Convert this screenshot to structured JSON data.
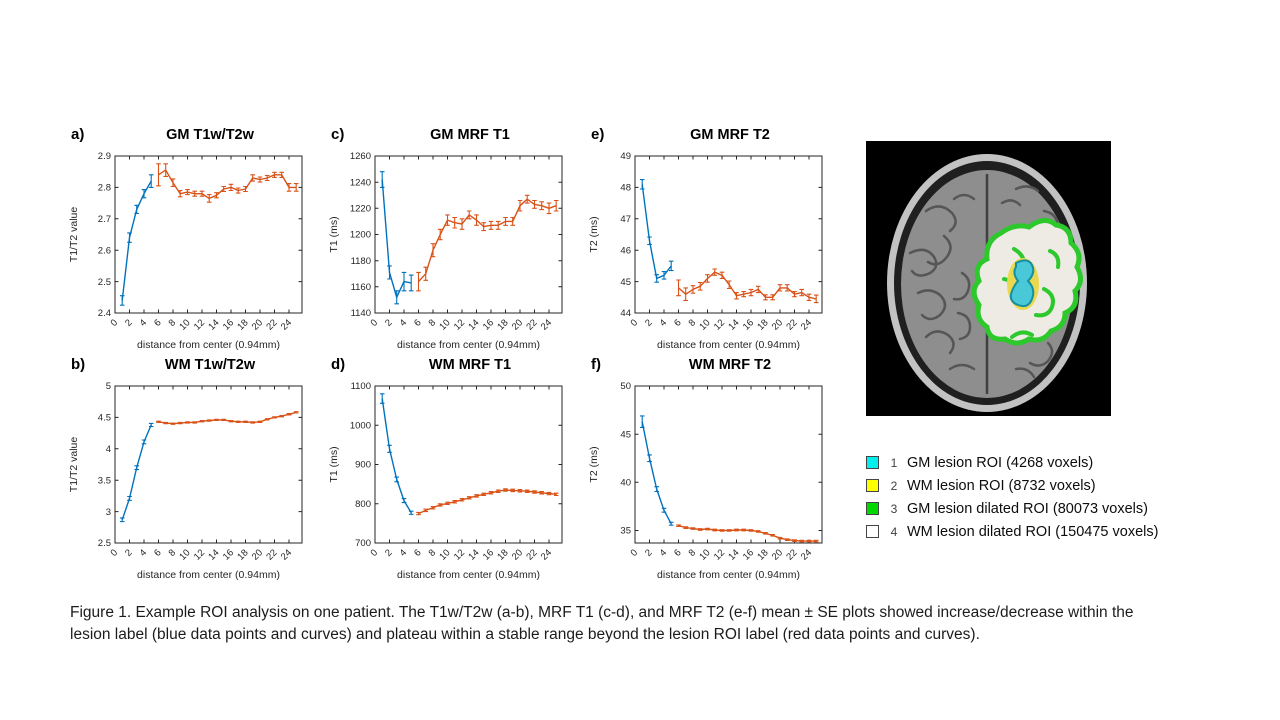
{
  "figure": {
    "caption": "Figure 1. Example ROI analysis on one patient. The T1w/T2w (a-b), MRF T1 (c-d), and MRF T2 (e-f) mean ± SE plots showed increase/decrease within the lesion label (blue data points and curves) and plateau within a stable range beyond the lesion ROI label (red data points and curves)."
  },
  "palette": {
    "lesion_curve_blue": "#0072BD",
    "beyond_lesion_curve_red": "#D95319",
    "axis_color": "#262626"
  },
  "legend": {
    "items": [
      {
        "num": "1",
        "color": "#00F0F0",
        "label": "GM lesion ROI (4268 voxels)"
      },
      {
        "num": "2",
        "color": "#FFFF00",
        "label": "WM lesion ROI (8732 voxels)"
      },
      {
        "num": "3",
        "color": "#00D800",
        "label": "GM lesion dilated ROI (80073 voxels)"
      },
      {
        "num": "4",
        "color": "#FFFFFF",
        "label": "WM lesion dilated ROI (150475 voxels)"
      }
    ]
  },
  "chart_data": [
    {
      "type": "line",
      "panel": "a)",
      "title": "GM T1w/T2w",
      "xlabel": "distance from center (0.94mm)",
      "ylabel": "T1/T2 value",
      "xlim": [
        0,
        25.8
      ],
      "ylim": [
        2.4,
        2.9
      ],
      "xticks": [
        0,
        2,
        4,
        6,
        8,
        10,
        12,
        14,
        16,
        18,
        20,
        22,
        24
      ],
      "yticks": [
        2.4,
        2.5,
        2.6,
        2.7,
        2.8,
        2.9
      ],
      "series": [
        {
          "name": "lesion (blue)",
          "color": "#0072BD",
          "x": [
            1,
            2,
            3,
            4,
            5
          ],
          "y": [
            2.44,
            2.64,
            2.73,
            2.78,
            2.82
          ],
          "err": [
            0.015,
            0.015,
            0.013,
            0.013,
            0.02
          ]
        },
        {
          "name": "beyond lesion (red)",
          "color": "#D95319",
          "x": [
            6,
            7,
            8,
            9,
            10,
            11,
            12,
            13,
            14,
            15,
            16,
            17,
            18,
            19,
            20,
            21,
            22,
            23,
            24,
            25
          ],
          "y": [
            2.84,
            2.855,
            2.815,
            2.78,
            2.785,
            2.78,
            2.78,
            2.765,
            2.775,
            2.795,
            2.8,
            2.79,
            2.795,
            2.83,
            2.825,
            2.83,
            2.84,
            2.84,
            2.8,
            2.8
          ],
          "err": [
            0.035,
            0.02,
            0.012,
            0.01,
            0.008,
            0.008,
            0.008,
            0.012,
            0.008,
            0.008,
            0.01,
            0.008,
            0.008,
            0.01,
            0.008,
            0.008,
            0.008,
            0.008,
            0.012,
            0.012
          ]
        }
      ]
    },
    {
      "type": "line",
      "panel": "c)",
      "title": "GM MRF T1",
      "xlabel": "distance from center (0.94mm)",
      "ylabel": "T1 (ms)",
      "xlim": [
        0,
        25.8
      ],
      "ylim": [
        1140,
        1260
      ],
      "xticks": [
        0,
        2,
        4,
        6,
        8,
        10,
        12,
        14,
        16,
        18,
        20,
        22,
        24
      ],
      "yticks": [
        1140,
        1160,
        1180,
        1200,
        1220,
        1240,
        1260
      ],
      "series": [
        {
          "name": "lesion (blue)",
          "color": "#0072BD",
          "x": [
            1,
            2,
            3,
            4,
            5
          ],
          "y": [
            1242,
            1171,
            1152,
            1164,
            1163
          ],
          "err": [
            6,
            5,
            5,
            7,
            6
          ]
        },
        {
          "name": "beyond lesion (red)",
          "color": "#D95319",
          "x": [
            6,
            7,
            8,
            9,
            10,
            11,
            12,
            13,
            14,
            15,
            16,
            17,
            18,
            19,
            20,
            21,
            22,
            23,
            24,
            25
          ],
          "y": [
            1164,
            1170,
            1188,
            1200,
            1211,
            1209,
            1208,
            1215,
            1211,
            1206,
            1207,
            1207,
            1210,
            1210,
            1222,
            1227,
            1223,
            1222,
            1220,
            1222
          ],
          "err": [
            7,
            5,
            5,
            4,
            4,
            4,
            4,
            3,
            4,
            3,
            3,
            3,
            3,
            3,
            4,
            3,
            3,
            3,
            4,
            4
          ]
        }
      ]
    },
    {
      "type": "line",
      "panel": "e)",
      "title": "GM MRF T2",
      "xlabel": "distance from center (0.94mm)",
      "ylabel": "T2 (ms)",
      "xlim": [
        0,
        25.8
      ],
      "ylim": [
        44,
        49
      ],
      "xticks": [
        0,
        2,
        4,
        6,
        8,
        10,
        12,
        14,
        16,
        18,
        20,
        22,
        24
      ],
      "yticks": [
        44,
        45,
        46,
        47,
        48,
        49
      ],
      "series": [
        {
          "name": "lesion (blue)",
          "color": "#0072BD",
          "x": [
            1,
            2,
            3,
            4,
            5
          ],
          "y": [
            48.1,
            46.3,
            45.1,
            45.2,
            45.5
          ],
          "err": [
            0.15,
            0.12,
            0.12,
            0.12,
            0.15
          ]
        },
        {
          "name": "beyond lesion (red)",
          "color": "#D95319",
          "x": [
            6,
            7,
            8,
            9,
            10,
            11,
            12,
            13,
            14,
            15,
            16,
            17,
            18,
            19,
            20,
            21,
            22,
            23,
            24,
            25
          ],
          "y": [
            44.8,
            44.6,
            44.75,
            44.85,
            45.1,
            45.3,
            45.2,
            44.9,
            44.55,
            44.6,
            44.65,
            44.75,
            44.5,
            44.5,
            44.8,
            44.8,
            44.6,
            44.65,
            44.5,
            44.45
          ],
          "err": [
            0.25,
            0.2,
            0.12,
            0.12,
            0.12,
            0.1,
            0.1,
            0.12,
            0.1,
            0.08,
            0.1,
            0.1,
            0.08,
            0.08,
            0.1,
            0.1,
            0.08,
            0.1,
            0.1,
            0.12
          ]
        }
      ]
    },
    {
      "type": "line",
      "panel": "b)",
      "title": "WM T1w/T2w",
      "xlabel": "distance from center (0.94mm)",
      "ylabel": "T1/T2 value",
      "xlim": [
        0,
        25.8
      ],
      "ylim": [
        2.5,
        5
      ],
      "xticks": [
        0,
        2,
        4,
        6,
        8,
        10,
        12,
        14,
        16,
        18,
        20,
        22,
        24
      ],
      "yticks": [
        2.5,
        3,
        3.5,
        4,
        4.5,
        5
      ],
      "series": [
        {
          "name": "lesion (blue)",
          "color": "#0072BD",
          "x": [
            1,
            2,
            3,
            4,
            5
          ],
          "y": [
            2.87,
            3.21,
            3.7,
            4.11,
            4.38
          ],
          "err": [
            0.03,
            0.03,
            0.03,
            0.03,
            0.025
          ]
        },
        {
          "name": "beyond lesion (red)",
          "color": "#D95319",
          "x": [
            6,
            7,
            8,
            9,
            10,
            11,
            12,
            13,
            14,
            15,
            16,
            17,
            18,
            19,
            20,
            21,
            22,
            23,
            24,
            25
          ],
          "y": [
            4.43,
            4.41,
            4.4,
            4.41,
            4.42,
            4.42,
            4.44,
            4.45,
            4.46,
            4.46,
            4.44,
            4.43,
            4.43,
            4.42,
            4.43,
            4.47,
            4.5,
            4.52,
            4.55,
            4.58
          ],
          "err": [
            0.01,
            0.01,
            0.01,
            0.01,
            0.01,
            0.01,
            0.01,
            0.01,
            0.01,
            0.01,
            0.01,
            0.01,
            0.01,
            0.01,
            0.01,
            0.01,
            0.01,
            0.01,
            0.01,
            0.01
          ]
        }
      ]
    },
    {
      "type": "line",
      "panel": "d)",
      "title": "WM MRF T1",
      "xlabel": "distance from center (0.94mm)",
      "ylabel": "T1 (ms)",
      "xlim": [
        0,
        25.8
      ],
      "ylim": [
        700,
        1100
      ],
      "xticks": [
        0,
        2,
        4,
        6,
        8,
        10,
        12,
        14,
        16,
        18,
        20,
        22,
        24
      ],
      "yticks": [
        700,
        800,
        900,
        1000,
        1100
      ],
      "series": [
        {
          "name": "lesion (blue)",
          "color": "#0072BD",
          "x": [
            1,
            2,
            3,
            4,
            5
          ],
          "y": [
            1068,
            940,
            862,
            808,
            777
          ],
          "err": [
            12,
            9,
            6,
            5,
            4
          ]
        },
        {
          "name": "beyond lesion (red)",
          "color": "#D95319",
          "x": [
            6,
            7,
            8,
            9,
            10,
            11,
            12,
            13,
            14,
            15,
            16,
            17,
            18,
            19,
            20,
            21,
            22,
            23,
            24,
            25
          ],
          "y": [
            775,
            783,
            790,
            797,
            801,
            805,
            810,
            815,
            820,
            824,
            828,
            832,
            835,
            834,
            833,
            832,
            830,
            828,
            826,
            824
          ],
          "err": [
            3,
            3,
            3,
            3,
            3,
            3,
            3,
            3,
            3,
            3,
            3,
            3,
            3,
            3,
            3,
            3,
            3,
            3,
            3,
            3
          ]
        }
      ]
    },
    {
      "type": "line",
      "panel": "f)",
      "title": "WM MRF T2",
      "xlabel": "distance from center (0.94mm)",
      "ylabel": "T2 (ms)",
      "xlim": [
        0,
        25.8
      ],
      "ylim": [
        33.7,
        50
      ],
      "xticks": [
        0,
        2,
        4,
        6,
        8,
        10,
        12,
        14,
        16,
        18,
        20,
        22,
        24
      ],
      "yticks": [
        35,
        40,
        45,
        50
      ],
      "series": [
        {
          "name": "lesion (blue)",
          "color": "#0072BD",
          "x": [
            1,
            2,
            3,
            4,
            5
          ],
          "y": [
            46.3,
            42.5,
            39.3,
            37.1,
            35.7
          ],
          "err": [
            0.6,
            0.35,
            0.25,
            0.2,
            0.15
          ]
        },
        {
          "name": "beyond lesion (red)",
          "color": "#D95319",
          "x": [
            6,
            7,
            8,
            9,
            10,
            11,
            12,
            13,
            14,
            15,
            16,
            17,
            18,
            19,
            20,
            21,
            22,
            23,
            24,
            25
          ],
          "y": [
            35.5,
            35.3,
            35.2,
            35.1,
            35.15,
            35.05,
            35.0,
            35.0,
            35.05,
            35.05,
            35.0,
            34.9,
            34.7,
            34.5,
            34.2,
            34.05,
            33.95,
            33.9,
            33.9,
            33.9
          ],
          "err": [
            0.08,
            0.08,
            0.08,
            0.08,
            0.08,
            0.08,
            0.08,
            0.08,
            0.08,
            0.08,
            0.08,
            0.08,
            0.08,
            0.08,
            0.08,
            0.08,
            0.08,
            0.08,
            0.08,
            0.08
          ]
        }
      ]
    }
  ]
}
